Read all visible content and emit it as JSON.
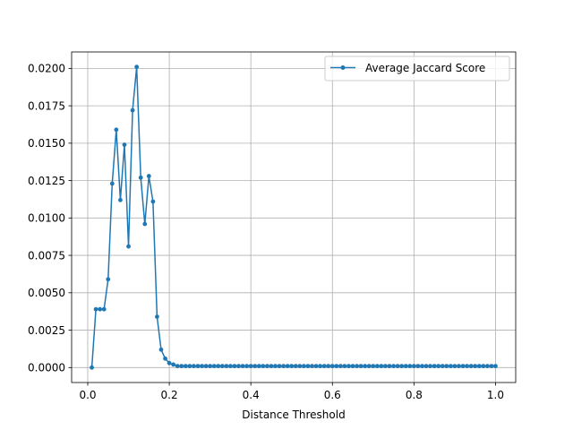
{
  "chart_data": {
    "type": "line",
    "title": "",
    "xlabel": "Distance Threshold",
    "ylabel": "",
    "xlim": [
      -0.0395,
      1.0495
    ],
    "ylim": [
      -0.001,
      0.0211
    ],
    "grid": true,
    "legend_position": "top-right",
    "x_ticks": [
      0.0,
      0.2,
      0.4,
      0.6,
      0.8,
      1.0
    ],
    "x_tick_labels": [
      "0.0",
      "0.2",
      "0.4",
      "0.6",
      "0.8",
      "1.0"
    ],
    "y_ticks": [
      0.0,
      0.0025,
      0.005,
      0.0075,
      0.01,
      0.0125,
      0.015,
      0.0175,
      0.02
    ],
    "y_tick_labels": [
      "0.0000",
      "0.0025",
      "0.0050",
      "0.0075",
      "0.0100",
      "0.0125",
      "0.0150",
      "0.0175",
      "0.0200"
    ],
    "colors": {
      "series": "#1f77b4",
      "grid": "#b0b0b0",
      "axes": "#000000"
    },
    "series": [
      {
        "name": "Average Jaccard Score",
        "marker": "point",
        "x_start": 0.01,
        "x_step": 0.01,
        "values": [
          0.0,
          0.0039,
          0.0039,
          0.0039,
          0.0059,
          0.0123,
          0.0159,
          0.0112,
          0.0149,
          0.0081,
          0.0172,
          0.0201,
          0.0127,
          0.0096,
          0.0128,
          0.0111,
          0.0034,
          0.0012,
          0.0006,
          0.0003,
          0.0002,
          0.0001,
          0.0001,
          0.0001,
          0.0001,
          0.0001,
          0.0001,
          0.0001,
          0.0001,
          0.0001,
          0.0001,
          0.0001,
          0.0001,
          0.0001,
          0.0001,
          0.0001,
          0.0001,
          0.0001,
          0.0001,
          0.0001,
          0.0001,
          0.0001,
          0.0001,
          0.0001,
          0.0001,
          0.0001,
          0.0001,
          0.0001,
          0.0001,
          0.0001,
          0.0001,
          0.0001,
          0.0001,
          0.0001,
          0.0001,
          0.0001,
          0.0001,
          0.0001,
          0.0001,
          0.0001,
          0.0001,
          0.0001,
          0.0001,
          0.0001,
          0.0001,
          0.0001,
          0.0001,
          0.0001,
          0.0001,
          0.0001,
          0.0001,
          0.0001,
          0.0001,
          0.0001,
          0.0001,
          0.0001,
          0.0001,
          0.0001,
          0.0001,
          0.0001,
          0.0001,
          0.0001,
          0.0001,
          0.0001,
          0.0001,
          0.0001,
          0.0001,
          0.0001,
          0.0001,
          0.0001,
          0.0001,
          0.0001,
          0.0001,
          0.0001,
          0.0001,
          0.0001,
          0.0001,
          0.0001,
          0.0001,
          0.0001
        ]
      }
    ]
  }
}
